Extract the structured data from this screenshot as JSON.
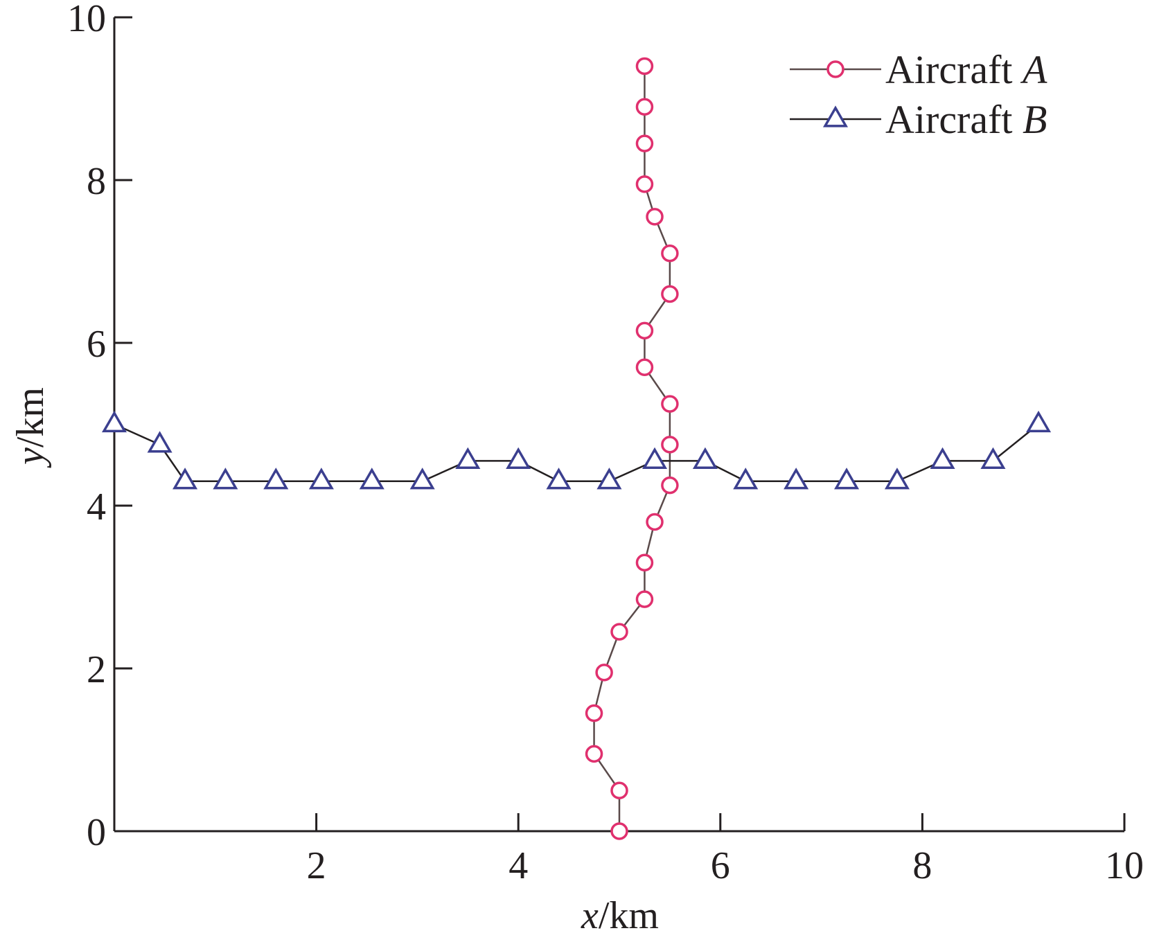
{
  "chart_data": {
    "type": "line",
    "title": "",
    "xlabel": {
      "var": "x",
      "unit": "/km"
    },
    "ylabel": {
      "var": "y",
      "unit": "/km"
    },
    "xlim": [
      0,
      10
    ],
    "ylim": [
      0,
      10
    ],
    "xticks": [
      2,
      4,
      6,
      8,
      10
    ],
    "yticks": [
      0,
      2,
      4,
      6,
      8,
      10
    ],
    "grid": false,
    "legend_position": "top-right",
    "series": [
      {
        "name": "Aircraft A",
        "legend_prefix": "Aircraft ",
        "legend_suffix": "A",
        "marker": "circle",
        "marker_color": "#e0306e",
        "line_color": "#5a4a4a",
        "x": [
          5.0,
          5.0,
          4.75,
          4.75,
          4.85,
          5.0,
          5.25,
          5.25,
          5.35,
          5.5,
          5.5,
          5.5,
          5.25,
          5.25,
          5.5,
          5.5,
          5.35,
          5.25,
          5.25,
          5.25,
          5.25
        ],
        "y": [
          0.0,
          0.5,
          0.95,
          1.45,
          1.95,
          2.45,
          2.85,
          3.3,
          3.8,
          4.25,
          4.75,
          5.25,
          5.7,
          6.15,
          6.6,
          7.1,
          7.55,
          7.95,
          8.45,
          8.9,
          9.4
        ]
      },
      {
        "name": "Aircraft B",
        "legend_prefix": "Aircraft ",
        "legend_suffix": "B",
        "marker": "triangle",
        "marker_color": "#3b3f8f",
        "line_color": "#231f20",
        "x": [
          0.0,
          0.45,
          0.7,
          1.1,
          1.6,
          2.05,
          2.55,
          3.05,
          3.5,
          4.0,
          4.4,
          4.9,
          5.35,
          5.85,
          6.25,
          6.75,
          7.25,
          7.75,
          8.2,
          8.7,
          9.15
        ],
        "y": [
          5.0,
          4.75,
          4.3,
          4.3,
          4.3,
          4.3,
          4.3,
          4.3,
          4.55,
          4.55,
          4.3,
          4.3,
          4.55,
          4.55,
          4.3,
          4.3,
          4.3,
          4.3,
          4.55,
          4.55,
          5.0
        ]
      }
    ]
  }
}
